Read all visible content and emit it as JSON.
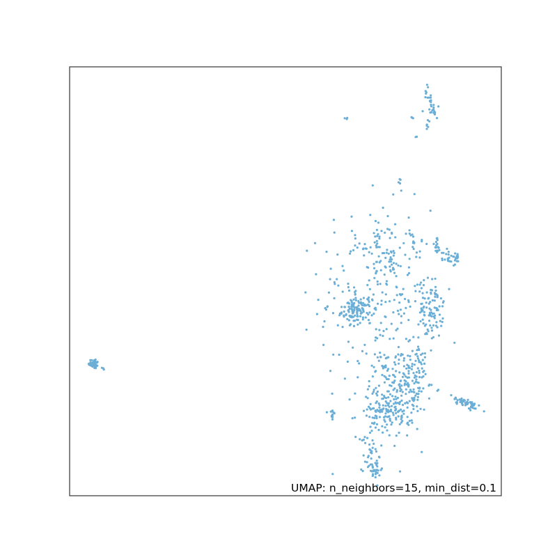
{
  "chart_data": {
    "type": "scatter",
    "title": "",
    "xlabel": "",
    "ylabel": "",
    "xlim": [
      0,
      100
    ],
    "ylim": [
      0,
      100
    ],
    "grid": false,
    "ticks": false,
    "legend": "none",
    "annotation": "UMAP: n_neighbors=15, min_dist=0.1",
    "annotation_placement": "bottom-right",
    "point_color": "#6baed6",
    "frame_color": "#333333",
    "clusters": [
      {
        "cx": 83.5,
        "cy": 92.0,
        "sx": 0.5,
        "sy": 2.5,
        "rot": 0.35,
        "n": 22
      },
      {
        "cx": 84.0,
        "cy": 89.5,
        "sx": 1.2,
        "sy": 0.4,
        "rot": 0,
        "n": 8
      },
      {
        "cx": 83.0,
        "cy": 86.5,
        "sx": 0.3,
        "sy": 0.8,
        "rot": 0,
        "n": 6
      },
      {
        "cx": 79.5,
        "cy": 88.5,
        "sx": 0.2,
        "sy": 0.3,
        "rot": 0,
        "n": 3
      },
      {
        "cx": 80.3,
        "cy": 83.5,
        "sx": 0.2,
        "sy": 0.2,
        "rot": 0,
        "n": 2
      },
      {
        "cx": 64.0,
        "cy": 87.8,
        "sx": 0.2,
        "sy": 0.2,
        "rot": 0,
        "n": 3
      },
      {
        "cx": 76.5,
        "cy": 73.3,
        "sx": 0.2,
        "sy": 0.3,
        "rot": 0,
        "n": 4
      },
      {
        "cx": 5.6,
        "cy": 30.8,
        "sx": 0.6,
        "sy": 0.6,
        "rot": 0,
        "n": 38
      },
      {
        "cx": 8.0,
        "cy": 29.6,
        "sx": 0.2,
        "sy": 0.2,
        "rot": 0,
        "n": 3
      },
      {
        "cx": 60.8,
        "cy": 19.0,
        "sx": 0.3,
        "sy": 1.0,
        "rot": 0,
        "n": 12
      },
      {
        "cx": 92.0,
        "cy": 21.5,
        "sx": 1.9,
        "sy": 0.6,
        "rot": -0.45,
        "n": 55
      },
      {
        "cx": 71.0,
        "cy": 47.0,
        "sx": 6.5,
        "sy": 10.0,
        "rot": 0,
        "n": 260
      },
      {
        "cx": 66.5,
        "cy": 43.0,
        "sx": 1.7,
        "sy": 1.3,
        "rot": 0,
        "n": 85
      },
      {
        "cx": 83.7,
        "cy": 43.5,
        "sx": 1.4,
        "sy": 3.5,
        "rot": 0,
        "n": 90
      },
      {
        "cx": 77.0,
        "cy": 25.0,
        "sx": 2.8,
        "sy": 5.0,
        "rot": 0.05,
        "n": 140
      },
      {
        "cx": 72.5,
        "cy": 19.5,
        "sx": 3.0,
        "sy": 3.0,
        "rot": 0,
        "n": 120
      },
      {
        "cx": 70.0,
        "cy": 9.5,
        "sx": 1.0,
        "sy": 3.5,
        "rot": 0,
        "n": 45
      },
      {
        "cx": 71.0,
        "cy": 6.0,
        "sx": 0.6,
        "sy": 1.2,
        "rot": 0,
        "n": 15
      },
      {
        "cx": 80.5,
        "cy": 27.0,
        "sx": 1.3,
        "sy": 4.0,
        "rot": -0.15,
        "n": 60
      },
      {
        "cx": 73.0,
        "cy": 29.5,
        "sx": 0.8,
        "sy": 2.0,
        "rot": 0,
        "n": 18
      },
      {
        "cx": 88.6,
        "cy": 55.5,
        "sx": 1.0,
        "sy": 1.0,
        "rot": 0,
        "n": 30
      },
      {
        "cx": 85.0,
        "cy": 58.0,
        "sx": 0.5,
        "sy": 1.5,
        "rot": 0,
        "n": 16
      },
      {
        "cx": 79.5,
        "cy": 59.0,
        "sx": 0.4,
        "sy": 1.5,
        "rot": 0.2,
        "n": 12
      },
      {
        "cx": 71.5,
        "cy": 59.5,
        "sx": 0.5,
        "sy": 1.2,
        "rot": 0,
        "n": 12
      },
      {
        "cx": 74.5,
        "cy": 55.0,
        "sx": 1.0,
        "sy": 1.5,
        "rot": 0,
        "n": 22
      },
      {
        "cx": 68.5,
        "cy": 58.0,
        "sx": 0.5,
        "sy": 0.6,
        "rot": 0,
        "n": 6
      }
    ]
  }
}
